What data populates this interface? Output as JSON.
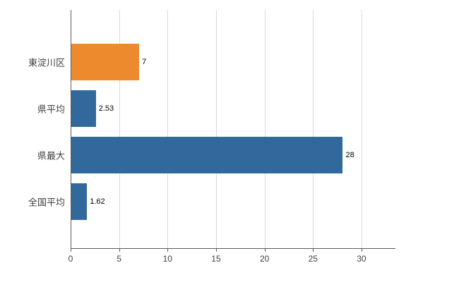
{
  "chart_data": {
    "type": "bar",
    "orientation": "horizontal",
    "title": "",
    "xlabel": "",
    "ylabel": "",
    "categories": [
      "東淀川区",
      "県平均",
      "県最大",
      "全国平均"
    ],
    "values": [
      7,
      2.53,
      28,
      1.62
    ],
    "value_labels": [
      "7",
      "2.53",
      "28",
      "1.62"
    ],
    "series_colors": [
      "#ee8a2e",
      "#32699c",
      "#32699c",
      "#32699c"
    ],
    "xlim": [
      0,
      33.5
    ],
    "xticks": [
      0,
      5,
      10,
      15,
      20,
      25,
      30
    ],
    "xtick_labels": [
      "0",
      "5",
      "10",
      "15",
      "20",
      "25",
      "30"
    ],
    "grid": true,
    "legend": "none"
  },
  "colors": {
    "grid": "#d9d9d9",
    "axis": "#595959",
    "tick_label": "#404040",
    "category_label": "#3f3f3f",
    "value_label": "#000000",
    "background": "#ffffff"
  }
}
